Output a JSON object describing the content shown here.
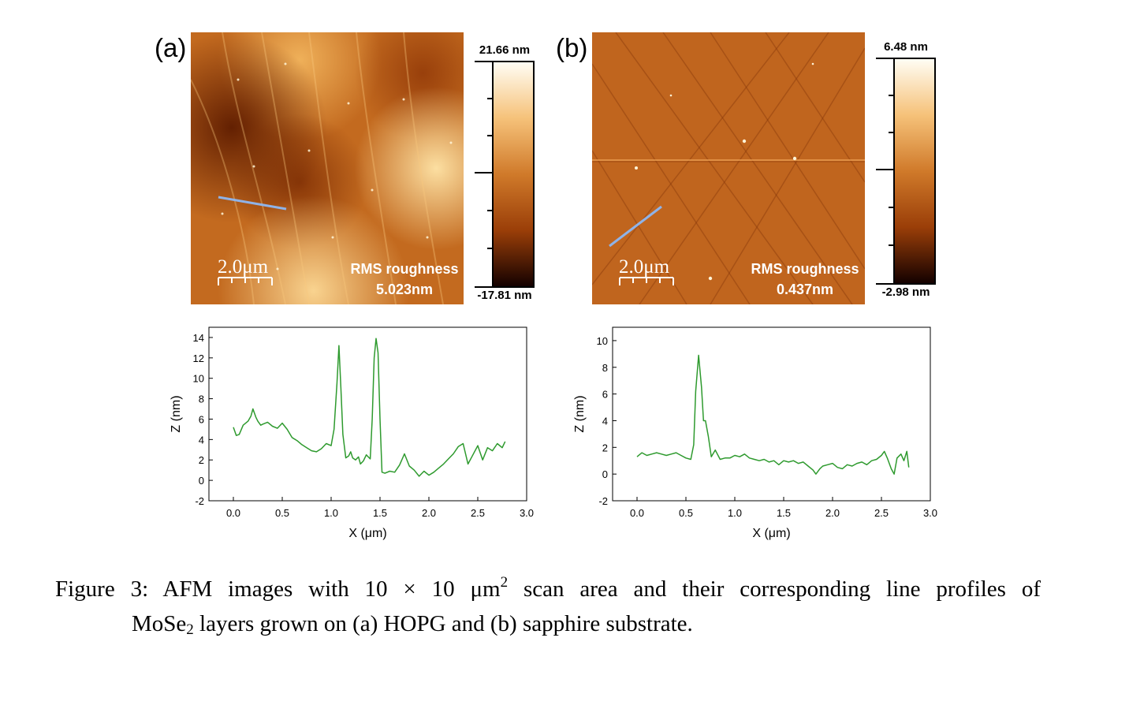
{
  "panels": {
    "a": {
      "label": "(a)",
      "rms_title": "RMS roughness",
      "rms_value": "5.023nm",
      "scalebar": "2.0μm",
      "colorbar_max": "21.66 nm",
      "colorbar_min": "-17.81 nm"
    },
    "b": {
      "label": "(b)",
      "rms_title": "RMS roughness",
      "rms_value": "0.437nm",
      "scalebar": "2.0μm",
      "colorbar_max": "6.48 nm",
      "colorbar_min": "-2.98 nm"
    }
  },
  "colors": {
    "profile_line": "#2e9a2e",
    "scan_line": "#8fb3e8",
    "afm_dark": "#5a1a00",
    "afm_mid": "#c0651a",
    "afm_light": "#ffe9b0"
  },
  "chart_data": [
    {
      "type": "line",
      "xlabel": "X (μm)",
      "ylabel": "Z (nm)",
      "xlim": [
        -0.25,
        3.0
      ],
      "ylim": [
        -2,
        15
      ],
      "xticks": [
        "0.0",
        "0.5",
        "1.0",
        "1.5",
        "2.0",
        "2.5",
        "3.0"
      ],
      "xtick_values": [
        0,
        0.5,
        1.0,
        1.5,
        2.0,
        2.5,
        3.0
      ],
      "yticks": [
        "-2",
        "0",
        "2",
        "4",
        "6",
        "8",
        "10",
        "12",
        "14"
      ],
      "ytick_values": [
        -2,
        0,
        2,
        4,
        6,
        8,
        10,
        12,
        14
      ],
      "x": [
        0.0,
        0.03,
        0.06,
        0.1,
        0.15,
        0.18,
        0.2,
        0.23,
        0.25,
        0.28,
        0.3,
        0.35,
        0.4,
        0.45,
        0.5,
        0.55,
        0.6,
        0.65,
        0.7,
        0.75,
        0.8,
        0.85,
        0.9,
        0.95,
        1.0,
        1.03,
        1.06,
        1.08,
        1.1,
        1.12,
        1.15,
        1.18,
        1.2,
        1.22,
        1.25,
        1.28,
        1.3,
        1.33,
        1.36,
        1.4,
        1.42,
        1.44,
        1.46,
        1.48,
        1.5,
        1.52,
        1.55,
        1.6,
        1.65,
        1.7,
        1.75,
        1.8,
        1.85,
        1.9,
        1.95,
        2.0,
        2.05,
        2.1,
        2.15,
        2.2,
        2.25,
        2.3,
        2.35,
        2.4,
        2.45,
        2.5,
        2.55,
        2.6,
        2.65,
        2.7,
        2.75,
        2.78
      ],
      "series": [
        {
          "values": [
            5.2,
            4.4,
            4.5,
            5.4,
            5.8,
            6.3,
            7.0,
            6.2,
            5.8,
            5.4,
            5.5,
            5.7,
            5.3,
            5.1,
            5.6,
            5.0,
            4.2,
            3.9,
            3.5,
            3.2,
            2.9,
            2.8,
            3.1,
            3.6,
            3.4,
            5.0,
            9.5,
            13.2,
            9.0,
            4.5,
            2.2,
            2.4,
            2.8,
            2.2,
            2.0,
            2.3,
            1.6,
            1.9,
            2.5,
            2.1,
            6.0,
            12.0,
            13.9,
            12.5,
            6.0,
            0.8,
            0.7,
            0.9,
            0.8,
            1.5,
            2.6,
            1.4,
            1.0,
            0.4,
            0.9,
            0.5,
            0.8,
            1.2,
            1.6,
            2.1,
            2.6,
            3.3,
            3.6,
            1.6,
            2.5,
            3.4,
            2.0,
            3.2,
            2.9,
            3.6,
            3.2,
            3.8
          ]
        }
      ]
    },
    {
      "type": "line",
      "xlabel": "X (μm)",
      "ylabel": "Z (nm)",
      "xlim": [
        -0.25,
        3.0
      ],
      "ylim": [
        -2,
        11
      ],
      "xticks": [
        "0.0",
        "0.5",
        "1.0",
        "1.5",
        "2.0",
        "2.5",
        "3.0"
      ],
      "xtick_values": [
        0,
        0.5,
        1.0,
        1.5,
        2.0,
        2.5,
        3.0
      ],
      "yticks": [
        "-2",
        "0",
        "2",
        "4",
        "6",
        "8",
        "10"
      ],
      "ytick_values": [
        -2,
        0,
        2,
        4,
        6,
        8,
        10
      ],
      "x": [
        0.0,
        0.05,
        0.1,
        0.15,
        0.2,
        0.25,
        0.3,
        0.35,
        0.4,
        0.45,
        0.5,
        0.55,
        0.58,
        0.6,
        0.63,
        0.66,
        0.68,
        0.7,
        0.73,
        0.76,
        0.8,
        0.85,
        0.9,
        0.95,
        1.0,
        1.05,
        1.1,
        1.15,
        1.2,
        1.25,
        1.3,
        1.35,
        1.4,
        1.45,
        1.5,
        1.55,
        1.6,
        1.65,
        1.7,
        1.75,
        1.8,
        1.83,
        1.87,
        1.9,
        1.95,
        2.0,
        2.05,
        2.1,
        2.15,
        2.2,
        2.25,
        2.3,
        2.35,
        2.4,
        2.45,
        2.5,
        2.53,
        2.56,
        2.6,
        2.63,
        2.66,
        2.7,
        2.73,
        2.76,
        2.78
      ],
      "series": [
        {
          "values": [
            1.3,
            1.6,
            1.4,
            1.5,
            1.6,
            1.5,
            1.4,
            1.5,
            1.6,
            1.4,
            1.2,
            1.1,
            2.2,
            6.2,
            8.9,
            6.5,
            4.0,
            4.0,
            2.8,
            1.3,
            1.8,
            1.1,
            1.2,
            1.2,
            1.4,
            1.3,
            1.5,
            1.2,
            1.1,
            1.0,
            1.1,
            0.9,
            1.0,
            0.7,
            1.0,
            0.9,
            1.0,
            0.8,
            0.9,
            0.6,
            0.3,
            0.0,
            0.4,
            0.6,
            0.7,
            0.8,
            0.5,
            0.4,
            0.7,
            0.6,
            0.8,
            0.9,
            0.7,
            1.0,
            1.1,
            1.4,
            1.7,
            1.2,
            0.4,
            0.0,
            1.2,
            1.5,
            1.0,
            1.7,
            0.5
          ]
        }
      ]
    }
  ],
  "caption": {
    "part1": "Figure 3: AFM images with 10 × 10 μm",
    "sup": "2",
    "part2": " scan area and their corresponding line profiles of",
    "line2_part1": "MoSe",
    "sub": "2",
    "line2_part2": " layers grown on (a) HOPG and (b) sapphire substrate."
  }
}
